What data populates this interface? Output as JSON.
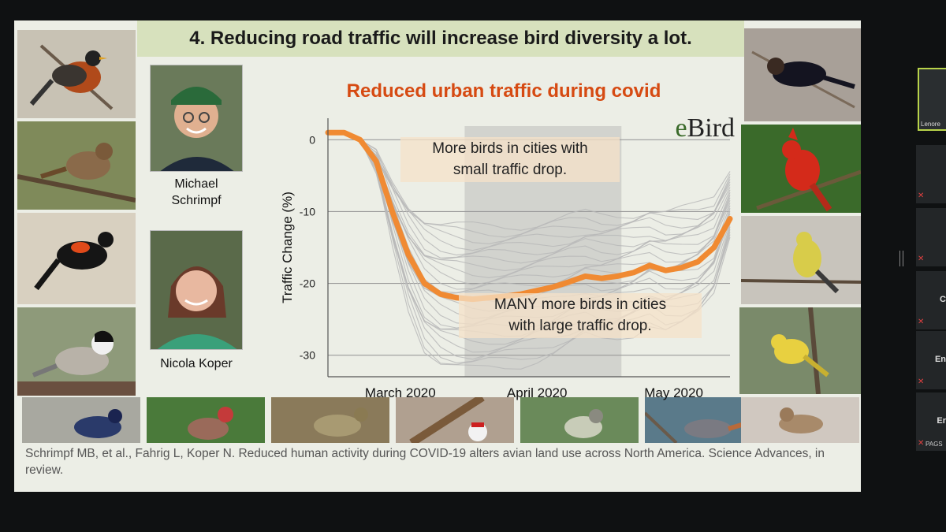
{
  "slide": {
    "title": "4. Reducing road traffic will increase bird diversity a lot.",
    "chart_title": "Reduced urban traffic during covid",
    "logo_text": "eBird",
    "callout_top_line1": "More birds in cities with",
    "callout_top_line2": "small traffic drop.",
    "callout_bottom_line1": "MANY more birds in cities",
    "callout_bottom_line2": "with large traffic drop.",
    "person1_line1": "Michael",
    "person1_line2": "Schrimpf",
    "person2": "Nicola Koper",
    "citation": "Schrimpf MB, et al., Fahrig L, Koper N. Reduced human activity during COVID-19 alters avian land use across North America. Science Advances, in review."
  },
  "chart_data": {
    "type": "line",
    "ylabel": "Traffic Change (%)",
    "ylim": [
      -33,
      3
    ],
    "y_ticks": [
      0,
      -10,
      -20,
      -30
    ],
    "y_tick_labels": [
      "0",
      "-10",
      "-20",
      "-30"
    ],
    "x_tick_labels": [
      "March 2020",
      "April 2020",
      "May 2020"
    ],
    "highlight_color": "#f08a32",
    "background_lines_color": "#b8b8b8",
    "shaded_window": "April 2020",
    "series": [
      {
        "x": [
          0,
          4,
          8,
          12,
          16,
          20,
          24,
          28,
          32,
          36,
          40,
          44,
          48,
          52,
          56,
          60,
          64,
          68,
          72,
          76,
          80,
          84,
          88,
          92,
          96,
          100
        ],
        "values": [
          1,
          1,
          0,
          -3,
          -10,
          -16,
          -20,
          -21.5,
          -22,
          -22.2,
          -22,
          -21.8,
          -21.5,
          -21,
          -20.5,
          -19.8,
          -19,
          -19.3,
          -19,
          -18.5,
          -17.5,
          -18.2,
          -17.8,
          -17,
          -15,
          -11
        ]
      }
    ]
  },
  "meeting": {
    "self_name": "Lenore",
    "tile_letters": [
      "",
      "C",
      "En",
      "Er"
    ],
    "last_tile_name": "PAGS"
  },
  "colors": {
    "title_bar": "#d7e1bd",
    "chart_title": "#d64a12",
    "slide_bg": "#eceee6"
  }
}
